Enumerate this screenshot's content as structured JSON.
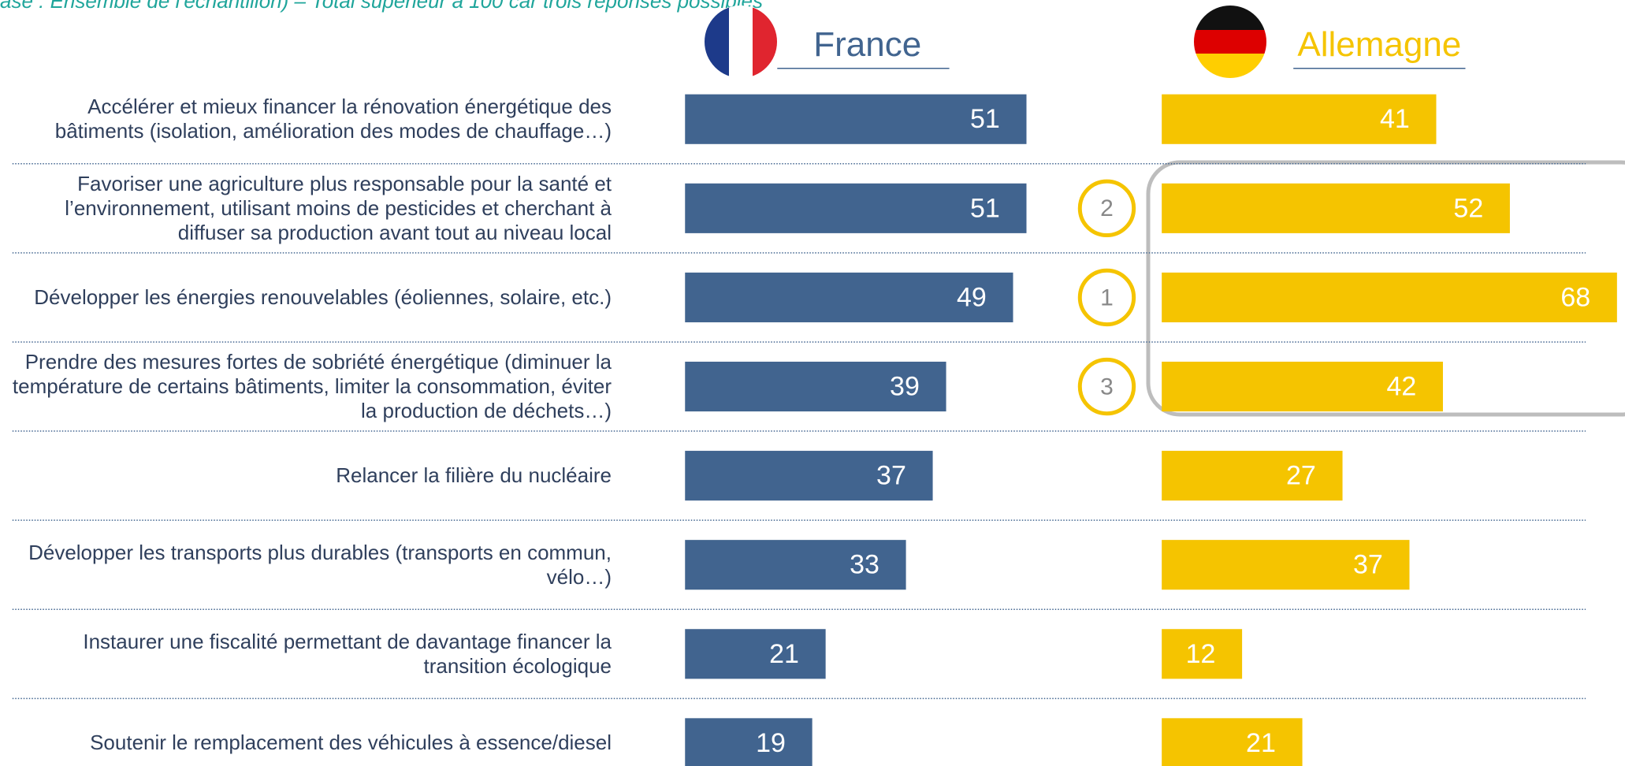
{
  "chart_data": {
    "type": "bar",
    "subtitle": "ase : Ensemble de l'échantillon) – Total supérieur à 100 car trois réponses possibles",
    "categories": [
      "Accélérer et mieux financer la rénovation énergétique des bâtiments (isolation, amélioration des modes de chauffage…)",
      "Favoriser une agriculture plus responsable pour la santé et l’environnement, utilisant moins de pesticides et cherchant à diffuser sa production avant tout au niveau local",
      "Développer les énergies renouvelables (éoliennes, solaire, etc.)",
      "Prendre des mesures fortes de sobriété énergétique (diminuer la température de certains bâtiments, limiter la consommation, éviter la production de déchets…)",
      "Relancer la filière du nucléaire",
      "Développer les transports plus durables (transports en commun, vélo…)",
      "Instaurer une fiscalité permettant de davantage financer la transition écologique",
      "Soutenir le remplacement des véhicules à essence/diesel"
    ],
    "series": [
      {
        "name": "France",
        "color": "#41648f",
        "values": [
          51,
          51,
          49,
          39,
          37,
          33,
          21,
          19
        ]
      },
      {
        "name": "Allemagne",
        "color": "#f5c400",
        "values": [
          41,
          52,
          68,
          42,
          27,
          37,
          12,
          21
        ]
      }
    ],
    "rank_labels": [
      null,
      "2",
      "1",
      "3",
      null,
      null,
      null,
      null
    ]
  }
}
